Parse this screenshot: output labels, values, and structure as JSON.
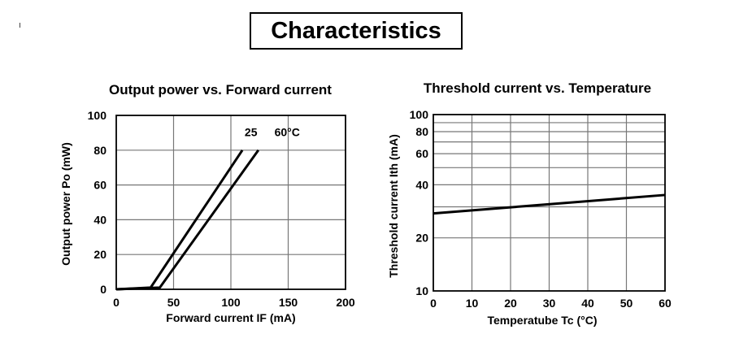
{
  "page": {
    "title": "Characteristics"
  },
  "chart_data": [
    {
      "type": "line",
      "title": "Output power vs. Forward current",
      "xlabel": "Forward current  IF (mA)",
      "ylabel": "Output power  Po (mW)",
      "xlim": [
        0,
        200
      ],
      "ylim": [
        0,
        100
      ],
      "xticks": [
        0,
        50,
        100,
        150,
        200
      ],
      "yticks": [
        0,
        20,
        40,
        60,
        80,
        100
      ],
      "x_tick_labels": [
        "0",
        "50",
        "100",
        "150",
        "200"
      ],
      "y_tick_labels": [
        "0",
        "20",
        "40",
        "60",
        "80",
        "100"
      ],
      "grid": true,
      "annotations": [
        {
          "text": "25",
          "x": 112,
          "y": 88
        },
        {
          "text": "60°C",
          "x": 138,
          "y": 88
        }
      ],
      "series": [
        {
          "label": "25",
          "x": [
            0,
            30,
            110
          ],
          "y": [
            0,
            1,
            80
          ]
        },
        {
          "label": "60°C",
          "x": [
            0,
            38,
            124
          ],
          "y": [
            0,
            1,
            80
          ]
        }
      ]
    },
    {
      "type": "line",
      "title": "Threshold current vs. Temperature",
      "xlabel": "Temperatube  Tc (°C)",
      "ylabel": "Threshold current  Ith (mA)",
      "xlim": [
        0,
        60
      ],
      "ylim": [
        10,
        100
      ],
      "yscale": "log",
      "xticks": [
        0,
        10,
        20,
        30,
        40,
        50,
        60
      ],
      "x_tick_labels": [
        "0",
        "10",
        "20",
        "30",
        "40",
        "50",
        "60"
      ],
      "yticks": [
        10,
        20,
        40,
        60,
        80,
        100
      ],
      "y_tick_labels": [
        "10",
        "20",
        "40",
        "60",
        "80",
        "100"
      ],
      "y_grid": [
        10,
        20,
        30,
        40,
        50,
        60,
        70,
        80,
        90,
        100
      ],
      "grid": true,
      "series": [
        {
          "x": [
            0,
            60
          ],
          "y": [
            27.5,
            35
          ]
        }
      ]
    }
  ]
}
